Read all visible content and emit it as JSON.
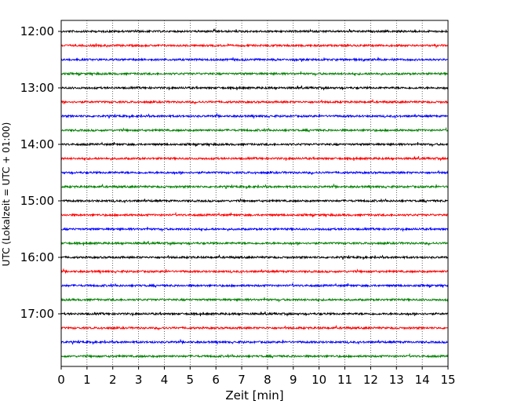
{
  "chart_data": {
    "type": "line",
    "title": "",
    "xlabel": "Zeit  [min]",
    "ylabel": "UTC (Lokalzeit = UTC + 01:00)",
    "xlim": [
      0,
      15
    ],
    "x_ticks": [
      "0",
      "1",
      "2",
      "3",
      "4",
      "5",
      "6",
      "7",
      "8",
      "9",
      "10",
      "11",
      "12",
      "13",
      "14",
      "15"
    ],
    "y_hour_labels": [
      "12:00",
      "13:00",
      "14:00",
      "15:00",
      "16:00",
      "17:00"
    ],
    "grid": "vertical dotted lines at each minute",
    "trace_colors": [
      "#000000",
      "#ff0000",
      "#0000ff",
      "#008000"
    ],
    "traces": [
      {
        "start": "12:00"
      },
      {
        "start": "12:15"
      },
      {
        "start": "12:30"
      },
      {
        "start": "12:45"
      },
      {
        "start": "13:00"
      },
      {
        "start": "13:15"
      },
      {
        "start": "13:30"
      },
      {
        "start": "13:45"
      },
      {
        "start": "14:00"
      },
      {
        "start": "14:15"
      },
      {
        "start": "14:30"
      },
      {
        "start": "14:45"
      },
      {
        "start": "15:00"
      },
      {
        "start": "15:15"
      },
      {
        "start": "15:30"
      },
      {
        "start": "15:45"
      },
      {
        "start": "16:00"
      },
      {
        "start": "16:15"
      },
      {
        "start": "16:30"
      },
      {
        "start": "16:45"
      },
      {
        "start": "17:00"
      },
      {
        "start": "17:15"
      },
      {
        "start": "17:30"
      },
      {
        "start": "17:45"
      }
    ]
  }
}
